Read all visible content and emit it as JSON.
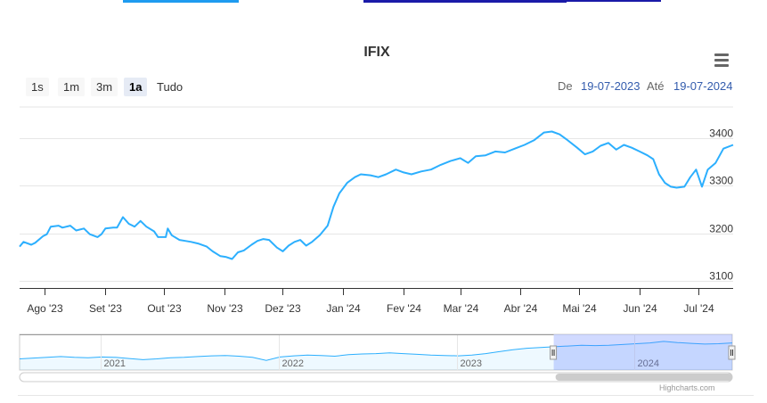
{
  "chart_data": {
    "type": "line",
    "title": "IFIX",
    "series": [
      {
        "color": "#2caffe",
        "points": [
          [
            "2023-07-19",
            3172
          ],
          [
            "2023-07-21",
            3182
          ],
          [
            "2023-07-25",
            3176
          ],
          [
            "2023-07-27",
            3180
          ],
          [
            "2023-07-31",
            3194
          ],
          [
            "2023-08-02",
            3198
          ],
          [
            "2023-08-04",
            3214
          ],
          [
            "2023-08-08",
            3216
          ],
          [
            "2023-08-10",
            3212
          ],
          [
            "2023-08-14",
            3216
          ],
          [
            "2023-08-17",
            3206
          ],
          [
            "2023-08-21",
            3210
          ],
          [
            "2023-08-24",
            3198
          ],
          [
            "2023-08-28",
            3192
          ],
          [
            "2023-08-30",
            3198
          ],
          [
            "2023-09-01",
            3210
          ],
          [
            "2023-09-05",
            3212
          ],
          [
            "2023-09-07",
            3212
          ],
          [
            "2023-09-10",
            3234
          ],
          [
            "2023-09-13",
            3220
          ],
          [
            "2023-09-16",
            3214
          ],
          [
            "2023-09-19",
            3226
          ],
          [
            "2023-09-22",
            3214
          ],
          [
            "2023-09-26",
            3204
          ],
          [
            "2023-09-28",
            3192
          ],
          [
            "2023-10-02",
            3192
          ],
          [
            "2023-10-03",
            3210
          ],
          [
            "2023-10-05",
            3196
          ],
          [
            "2023-10-09",
            3186
          ],
          [
            "2023-10-12",
            3184
          ],
          [
            "2023-10-15",
            3182
          ],
          [
            "2023-10-19",
            3178
          ],
          [
            "2023-10-23",
            3172
          ],
          [
            "2023-10-26",
            3162
          ],
          [
            "2023-10-30",
            3152
          ],
          [
            "2023-11-02",
            3150
          ],
          [
            "2023-11-05",
            3146
          ],
          [
            "2023-11-08",
            3160
          ],
          [
            "2023-11-11",
            3164
          ],
          [
            "2023-11-15",
            3176
          ],
          [
            "2023-11-18",
            3184
          ],
          [
            "2023-11-21",
            3188
          ],
          [
            "2023-11-24",
            3186
          ],
          [
            "2023-11-28",
            3170
          ],
          [
            "2023-12-01",
            3162
          ],
          [
            "2023-12-04",
            3174
          ],
          [
            "2023-12-07",
            3182
          ],
          [
            "2023-12-10",
            3186
          ],
          [
            "2023-12-13",
            3174
          ],
          [
            "2023-12-16",
            3182
          ],
          [
            "2023-12-20",
            3196
          ],
          [
            "2023-12-24",
            3216
          ],
          [
            "2023-12-27",
            3256
          ],
          [
            "2023-12-30",
            3284
          ],
          [
            "2024-01-03",
            3306
          ],
          [
            "2024-01-07",
            3318
          ],
          [
            "2024-01-10",
            3324
          ],
          [
            "2024-01-15",
            3322
          ],
          [
            "2024-01-19",
            3318
          ],
          [
            "2024-01-23",
            3324
          ],
          [
            "2024-01-28",
            3334
          ],
          [
            "2024-02-01",
            3328
          ],
          [
            "2024-02-05",
            3324
          ],
          [
            "2024-02-10",
            3330
          ],
          [
            "2024-02-15",
            3334
          ],
          [
            "2024-02-20",
            3344
          ],
          [
            "2024-02-25",
            3352
          ],
          [
            "2024-03-01",
            3358
          ],
          [
            "2024-03-05",
            3348
          ],
          [
            "2024-03-09",
            3362
          ],
          [
            "2024-03-14",
            3364
          ],
          [
            "2024-03-19",
            3372
          ],
          [
            "2024-03-24",
            3370
          ],
          [
            "2024-03-29",
            3378
          ],
          [
            "2024-04-03",
            3386
          ],
          [
            "2024-04-08",
            3396
          ],
          [
            "2024-04-13",
            3412
          ],
          [
            "2024-04-17",
            3414
          ],
          [
            "2024-04-21",
            3408
          ],
          [
            "2024-04-25",
            3396
          ],
          [
            "2024-04-30",
            3380
          ],
          [
            "2024-05-04",
            3366
          ],
          [
            "2024-05-08",
            3372
          ],
          [
            "2024-05-12",
            3384
          ],
          [
            "2024-05-16",
            3390
          ],
          [
            "2024-05-20",
            3376
          ],
          [
            "2024-05-24",
            3386
          ],
          [
            "2024-05-28",
            3380
          ],
          [
            "2024-06-01",
            3372
          ],
          [
            "2024-06-05",
            3364
          ],
          [
            "2024-06-08",
            3356
          ],
          [
            "2024-06-11",
            3324
          ],
          [
            "2024-06-14",
            3306
          ],
          [
            "2024-06-17",
            3298
          ],
          [
            "2024-06-20",
            3296
          ],
          [
            "2024-06-24",
            3298
          ],
          [
            "2024-06-27",
            3318
          ],
          [
            "2024-06-30",
            3334
          ],
          [
            "2024-07-03",
            3298
          ],
          [
            "2024-07-06",
            3334
          ],
          [
            "2024-07-10",
            3348
          ],
          [
            "2024-07-14",
            3378
          ],
          [
            "2024-07-19",
            3386
          ]
        ]
      }
    ],
    "xaxis": {
      "range": [
        "2023-07-19",
        "2024-07-19"
      ],
      "ticks": [
        {
          "date": "2023-08-01",
          "label": "Ago '23"
        },
        {
          "date": "2023-09-01",
          "label": "Set '23"
        },
        {
          "date": "2023-10-01",
          "label": "Out '23"
        },
        {
          "date": "2023-11-01",
          "label": "Nov '23"
        },
        {
          "date": "2023-12-01",
          "label": "Dez '23"
        },
        {
          "date": "2024-01-01",
          "label": "Jan '24"
        },
        {
          "date": "2024-02-01",
          "label": "Fev '24"
        },
        {
          "date": "2024-03-01",
          "label": "Mar '24"
        },
        {
          "date": "2024-04-01",
          "label": "Abr '24"
        },
        {
          "date": "2024-05-01",
          "label": "Mai '24"
        },
        {
          "date": "2024-06-01",
          "label": "Jun '24"
        },
        {
          "date": "2024-07-01",
          "label": "Jul '24"
        }
      ]
    },
    "yaxis": {
      "range": [
        3085,
        3400
      ],
      "ticks": [
        3100,
        3200,
        3300,
        3400
      ],
      "side": "right",
      "grid": true
    },
    "navigator": {
      "range": [
        "2020-07-19",
        "2024-07-19"
      ],
      "selected": [
        "2023-07-19",
        "2024-07-19"
      ],
      "year_labels": [
        {
          "date": "2021-01-01",
          "label": "2021"
        },
        {
          "date": "2022-01-01",
          "label": "2022"
        },
        {
          "date": "2023-01-01",
          "label": "2023"
        },
        {
          "date": "2024-01-01",
          "label": "2024"
        }
      ],
      "series": [
        3180,
        3190,
        3200,
        3210,
        3200,
        3195,
        3205,
        3200,
        3185,
        3170,
        3180,
        3195,
        3200,
        3210,
        3220,
        3225,
        3215,
        3200,
        3160,
        3205,
        3220,
        3230,
        3225,
        3215,
        3235,
        3245,
        3250,
        3260,
        3250,
        3240,
        3230,
        3225,
        3220,
        3230,
        3250,
        3275,
        3300,
        3320,
        3330,
        3340,
        3350,
        3360,
        3355,
        3360,
        3370,
        3380,
        3390,
        3410,
        3395,
        3385,
        3375,
        3380,
        3390
      ]
    }
  },
  "range_selector": {
    "buttons": [
      "1s",
      "1m",
      "3m",
      "1a",
      "Tudo"
    ],
    "selected": "1a"
  },
  "date_input": {
    "from_label": "De",
    "from_value": "19-07-2023",
    "to_label": "Até",
    "to_value": "19-07-2024"
  },
  "credits": "Highcharts.com",
  "colors": {
    "line": "#2caffe",
    "navigator_mask": "#6685ff",
    "top_strip_a": "#1e9bf0",
    "top_strip_b": "#1a1aa8"
  }
}
